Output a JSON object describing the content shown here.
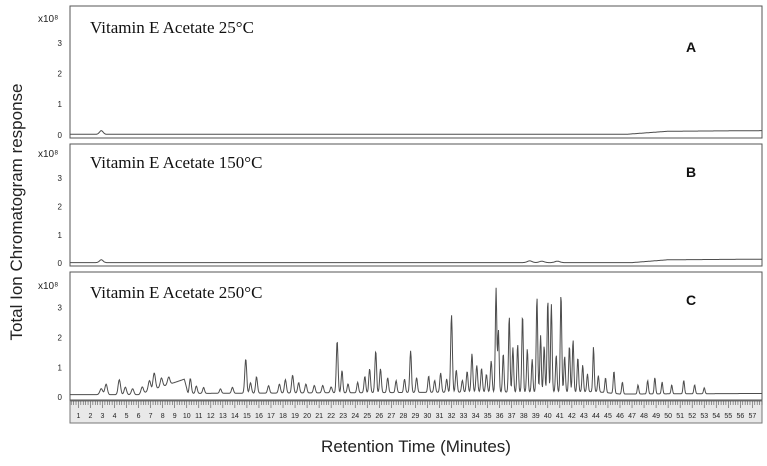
{
  "chart_data": {
    "type": "line",
    "ylabel": "Total Ion Chromatogram response",
    "xlabel": "Retention Time (Minutes)",
    "x_tick_labels": [
      "1",
      "2",
      "3",
      "4",
      "5",
      "6",
      "7",
      "8",
      "9",
      "10",
      "11",
      "12",
      "13",
      "14",
      "15",
      "16",
      "17",
      "18",
      "19",
      "20",
      "21",
      "22",
      "23",
      "24",
      "25",
      "26",
      "27",
      "28",
      "29",
      "30",
      "31",
      "32",
      "33",
      "34",
      "35",
      "36",
      "37",
      "38",
      "39",
      "40",
      "41",
      "42",
      "43",
      "44",
      "45",
      "46",
      "47",
      "48",
      "49",
      "50",
      "51",
      "52",
      "53",
      "54",
      "55",
      "56",
      "57"
    ],
    "xlim": [
      0.3,
      57.8
    ],
    "panels": [
      {
        "id": "A",
        "title": "Vitamin E Acetate 25°C",
        "y_multiplier": "x10⁸",
        "y_ticks": [
          "0",
          "1",
          "2",
          "3"
        ],
        "ylim": [
          -0.1,
          4.2
        ],
        "baseline": 0.02,
        "ramp": [
          [
            46.5,
            0.02
          ],
          [
            50,
            0.12
          ],
          [
            57.8,
            0.14
          ]
        ],
        "peaks": [
          [
            2.9,
            0.12,
            0.15
          ]
        ]
      },
      {
        "id": "B",
        "title": "Vitamin E Acetate 150°C",
        "y_multiplier": "x10⁸",
        "y_ticks": [
          "0",
          "1",
          "2",
          "3"
        ],
        "ylim": [
          -0.1,
          4.2
        ],
        "baseline": 0.02,
        "ramp": [
          [
            47,
            0.02
          ],
          [
            50,
            0.12
          ],
          [
            57.8,
            0.14
          ]
        ],
        "peaks": [
          [
            2.9,
            0.1,
            0.15
          ],
          [
            38.5,
            0.06,
            0.2
          ],
          [
            39.5,
            0.05,
            0.2
          ],
          [
            40.8,
            0.05,
            0.2
          ]
        ]
      },
      {
        "id": "C",
        "title": "Vitamin E Acetate 250°C",
        "y_multiplier": "x10⁸",
        "y_ticks": [
          "0",
          "1",
          "2",
          "3"
        ],
        "ylim": [
          -0.1,
          4.2
        ],
        "baseline": 0.08,
        "ramp": [
          [
            6,
            0.08
          ],
          [
            9.8,
            0.6
          ],
          [
            10.1,
            0.12
          ],
          [
            44,
            0.18
          ],
          [
            46,
            0.1
          ],
          [
            57.8,
            0.12
          ]
        ],
        "peaks": [
          [
            2.9,
            0.2,
            0.12
          ],
          [
            3.3,
            0.35,
            0.1
          ],
          [
            4.4,
            0.5,
            0.1
          ],
          [
            4.9,
            0.25,
            0.1
          ],
          [
            5.5,
            0.2,
            0.1
          ],
          [
            6.3,
            0.22,
            0.1
          ],
          [
            6.9,
            0.35,
            0.1
          ],
          [
            7.3,
            0.55,
            0.1
          ],
          [
            7.9,
            0.3,
            0.1
          ],
          [
            8.5,
            0.25,
            0.1
          ],
          [
            10.3,
            0.5,
            0.08
          ],
          [
            10.8,
            0.25,
            0.08
          ],
          [
            11.4,
            0.2,
            0.08
          ],
          [
            12.8,
            0.15,
            0.08
          ],
          [
            13.8,
            0.2,
            0.08
          ],
          [
            14.9,
            1.15,
            0.08
          ],
          [
            15.3,
            0.35,
            0.08
          ],
          [
            15.8,
            0.55,
            0.08
          ],
          [
            16.8,
            0.25,
            0.08
          ],
          [
            17.7,
            0.3,
            0.08
          ],
          [
            18.2,
            0.45,
            0.08
          ],
          [
            18.8,
            0.6,
            0.08
          ],
          [
            19.3,
            0.35,
            0.08
          ],
          [
            19.9,
            0.3,
            0.08
          ],
          [
            20.6,
            0.25,
            0.08
          ],
          [
            21.3,
            0.25,
            0.08
          ],
          [
            22.0,
            0.2,
            0.08
          ],
          [
            22.5,
            1.75,
            0.07
          ],
          [
            22.9,
            0.75,
            0.07
          ],
          [
            23.4,
            0.3,
            0.07
          ],
          [
            24.2,
            0.35,
            0.07
          ],
          [
            24.8,
            0.55,
            0.07
          ],
          [
            25.2,
            0.8,
            0.07
          ],
          [
            25.7,
            1.4,
            0.07
          ],
          [
            26.1,
            0.8,
            0.07
          ],
          [
            26.7,
            0.5,
            0.07
          ],
          [
            27.4,
            0.4,
            0.07
          ],
          [
            28.1,
            0.45,
            0.07
          ],
          [
            28.6,
            1.4,
            0.07
          ],
          [
            29.1,
            0.5,
            0.07
          ],
          [
            30.1,
            0.55,
            0.07
          ],
          [
            30.6,
            0.4,
            0.07
          ],
          [
            31.1,
            0.65,
            0.07
          ],
          [
            31.6,
            0.45,
            0.07
          ],
          [
            32.0,
            2.6,
            0.07
          ],
          [
            32.4,
            0.75,
            0.07
          ],
          [
            32.9,
            0.4,
            0.07
          ],
          [
            33.3,
            0.7,
            0.07
          ],
          [
            33.7,
            1.3,
            0.07
          ],
          [
            34.1,
            0.9,
            0.07
          ],
          [
            34.5,
            0.8,
            0.07
          ],
          [
            34.9,
            0.6,
            0.07
          ],
          [
            35.3,
            1.05,
            0.07
          ],
          [
            35.7,
            3.5,
            0.06
          ],
          [
            35.9,
            2.1,
            0.06
          ],
          [
            36.3,
            1.3,
            0.06
          ],
          [
            36.8,
            2.55,
            0.06
          ],
          [
            37.1,
            1.5,
            0.06
          ],
          [
            37.5,
            1.6,
            0.06
          ],
          [
            37.9,
            2.6,
            0.06
          ],
          [
            38.3,
            1.45,
            0.06
          ],
          [
            38.7,
            1.1,
            0.06
          ],
          [
            39.1,
            3.2,
            0.06
          ],
          [
            39.4,
            1.9,
            0.06
          ],
          [
            39.7,
            1.55,
            0.06
          ],
          [
            40.0,
            3.1,
            0.06
          ],
          [
            40.3,
            2.95,
            0.06
          ],
          [
            40.7,
            1.25,
            0.06
          ],
          [
            41.1,
            3.3,
            0.06
          ],
          [
            41.4,
            1.2,
            0.06
          ],
          [
            41.8,
            1.55,
            0.06
          ],
          [
            42.1,
            1.75,
            0.06
          ],
          [
            42.5,
            1.15,
            0.06
          ],
          [
            42.9,
            0.9,
            0.06
          ],
          [
            43.3,
            0.6,
            0.06
          ],
          [
            43.8,
            1.5,
            0.06
          ],
          [
            44.2,
            0.55,
            0.06
          ],
          [
            44.8,
            0.5,
            0.06
          ],
          [
            45.5,
            0.75,
            0.06
          ],
          [
            46.2,
            0.4,
            0.06
          ],
          [
            47.5,
            0.3,
            0.06
          ],
          [
            48.3,
            0.45,
            0.06
          ],
          [
            48.9,
            0.55,
            0.06
          ],
          [
            49.5,
            0.4,
            0.06
          ],
          [
            50.3,
            0.3,
            0.06
          ],
          [
            51.3,
            0.45,
            0.06
          ],
          [
            52.2,
            0.3,
            0.06
          ],
          [
            53.0,
            0.2,
            0.06
          ]
        ]
      }
    ]
  }
}
